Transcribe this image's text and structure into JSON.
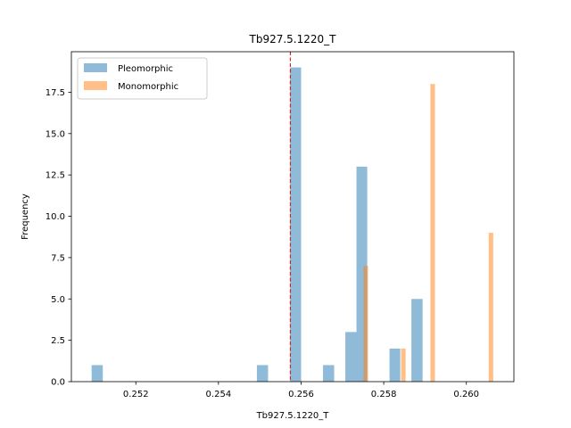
{
  "chart_data": {
    "type": "bar",
    "title": "Tb927.5.1220_T",
    "xlabel": "Tb927.5.1220_T",
    "ylabel": "Frequency",
    "xlim": [
      0.25044,
      0.26115
    ],
    "ylim": [
      0,
      19.95
    ],
    "xticks": [
      0.252,
      0.254,
      0.256,
      0.258,
      0.26
    ],
    "xtick_labels": [
      "0.252",
      "0.254",
      "0.256",
      "0.258",
      "0.260"
    ],
    "yticks": [
      0.0,
      2.5,
      5.0,
      7.5,
      10.0,
      12.5,
      15.0,
      17.5
    ],
    "ytick_labels": [
      "0.0",
      "2.5",
      "5.0",
      "7.5",
      "10.0",
      "12.5",
      "15.0",
      "17.5"
    ],
    "legend_position": "upper-left",
    "reference_line": {
      "x": 0.25574,
      "color": "#d62728",
      "style": "dashed"
    },
    "series": [
      {
        "name": "Pleomorphic",
        "color": "#1f77b4",
        "alpha": 0.5,
        "bins": [
          {
            "x0": 0.25093,
            "x1": 0.2512,
            "value": 1
          },
          {
            "x0": 0.25493,
            "x1": 0.2552,
            "value": 1
          },
          {
            "x0": 0.25573,
            "x1": 0.256,
            "value": 19
          },
          {
            "x0": 0.25653,
            "x1": 0.2568,
            "value": 1
          },
          {
            "x0": 0.25707,
            "x1": 0.25734,
            "value": 3
          },
          {
            "x0": 0.25734,
            "x1": 0.2576,
            "value": 13
          },
          {
            "x0": 0.25814,
            "x1": 0.2584,
            "value": 2
          },
          {
            "x0": 0.25867,
            "x1": 0.25894,
            "value": 5
          }
        ]
      },
      {
        "name": "Monomorphic",
        "color": "#ff7f0e",
        "alpha": 0.5,
        "bins": [
          {
            "x0": 0.25751,
            "x1": 0.25762,
            "value": 7
          },
          {
            "x0": 0.25842,
            "x1": 0.25853,
            "value": 2
          },
          {
            "x0": 0.25913,
            "x1": 0.25924,
            "value": 18
          },
          {
            "x0": 0.26054,
            "x1": 0.26065,
            "value": 9
          }
        ]
      }
    ]
  }
}
